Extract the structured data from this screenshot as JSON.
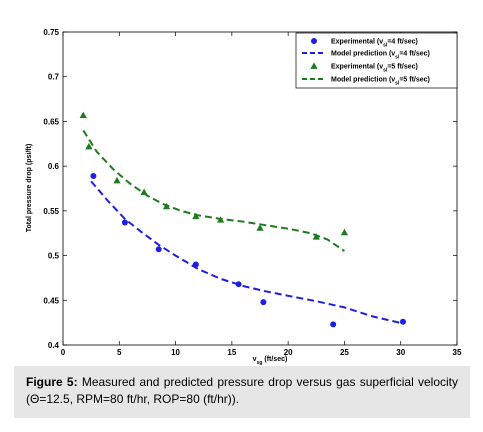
{
  "chart_data": {
    "type": "scatter",
    "title": "",
    "xlabel": "v",
    "xlabel_sub": "sg",
    "xlabel_suffix": " (ft/sec)",
    "ylabel": "Total pressure drop (psi/ft)",
    "xlim": [
      0,
      35
    ],
    "ylim": [
      0.4,
      0.75
    ],
    "x_ticks": [
      0,
      5,
      10,
      15,
      20,
      25,
      30,
      35
    ],
    "y_ticks": [
      0.4,
      0.45,
      0.5,
      0.55,
      0.6,
      0.65,
      0.7,
      0.75
    ],
    "grid": false,
    "legend_position": "top-right",
    "series": [
      {
        "name": "Experimental (v",
        "name_sub": "sl",
        "name_suffix": "=4 ft/sec)",
        "kind": "markers",
        "marker": "circle",
        "color": "#1f1fe0",
        "x": [
          2.7,
          5.5,
          8.5,
          11.8,
          15.6,
          17.8,
          24.0,
          30.2
        ],
        "y": [
          0.589,
          0.537,
          0.507,
          0.49,
          0.468,
          0.448,
          0.423,
          0.426
        ]
      },
      {
        "name": "Model prediction  (v",
        "name_sub": "sl",
        "name_suffix": "=4 ft/sec)",
        "kind": "dashed-line",
        "color": "#1f1fe0",
        "x": [
          2.5,
          4.0,
          5.5,
          7.0,
          8.5,
          10.0,
          12.0,
          14.0,
          16.0,
          18.0,
          20.0,
          22.5,
          25.0,
          27.5,
          30.2
        ],
        "y": [
          0.583,
          0.561,
          0.541,
          0.526,
          0.512,
          0.5,
          0.485,
          0.474,
          0.466,
          0.46,
          0.455,
          0.449,
          0.442,
          0.432,
          0.424
        ]
      },
      {
        "name": "Experimental (v",
        "name_sub": "sl",
        "name_suffix": "=5 ft/sec)",
        "kind": "markers",
        "marker": "triangle",
        "color": "#1e7a1e",
        "x": [
          1.8,
          2.3,
          4.8,
          7.2,
          9.2,
          11.8,
          14.0,
          17.5,
          22.5,
          25.0
        ],
        "y": [
          0.657,
          0.622,
          0.584,
          0.571,
          0.555,
          0.544,
          0.54,
          0.531,
          0.521,
          0.526
        ]
      },
      {
        "name": "Model prediction  (v",
        "name_sub": "sl",
        "name_suffix": "=5 ft/sec)",
        "kind": "dashed-line",
        "color": "#1e7a1e",
        "x": [
          1.8,
          3.0,
          4.5,
          6.0,
          7.5,
          9.0,
          10.5,
          12.0,
          14.0,
          16.0,
          18.0,
          20.0,
          22.0,
          23.5,
          25.0
        ],
        "y": [
          0.64,
          0.616,
          0.596,
          0.58,
          0.567,
          0.557,
          0.55,
          0.545,
          0.541,
          0.538,
          0.534,
          0.53,
          0.525,
          0.518,
          0.505
        ]
      }
    ]
  },
  "caption": {
    "label": "Figure 5:",
    "text": " Measured and predicted pressure drop versus gas superficial velocity (Θ=12.5, RPM=80 ft/hr, ROP=80 (ft/hr))."
  },
  "bottom_crop_text": "                                                         "
}
